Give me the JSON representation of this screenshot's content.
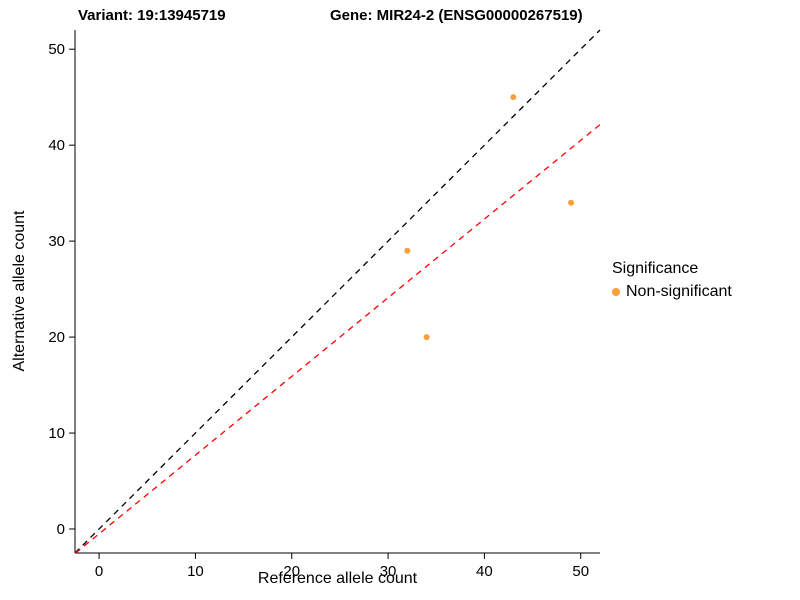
{
  "chart_data": {
    "type": "scatter",
    "title_left": "Variant: 19:13945719",
    "title_right": "Gene: MIR24-2 (ENSG00000267519)",
    "xlabel": "Reference allele count",
    "ylabel": "Alternative allele count",
    "xlim": [
      -2.5,
      52
    ],
    "ylim": [
      -2.5,
      52
    ],
    "xticks": [
      0,
      10,
      20,
      30,
      40,
      50
    ],
    "yticks": [
      0,
      10,
      20,
      30,
      40,
      50
    ],
    "grid": false,
    "points": [
      {
        "x": 32,
        "y": 29
      },
      {
        "x": 34,
        "y": 20
      },
      {
        "x": 43,
        "y": 45
      },
      {
        "x": 49,
        "y": 34
      }
    ],
    "point_color": "#F9A03C",
    "point_radius_px": 3,
    "lines": [
      {
        "name": "identity",
        "slope": 1,
        "intercept": 0,
        "color": "#000000",
        "style": "dashed"
      },
      {
        "name": "fit",
        "slope": 0.82,
        "intercept": -0.5,
        "color": "#FF0000",
        "style": "dashed"
      }
    ],
    "legend": {
      "title": "Significance",
      "position": "right-middle",
      "items": [
        {
          "label": "Non-significant",
          "color": "#F9A03C"
        }
      ]
    }
  }
}
